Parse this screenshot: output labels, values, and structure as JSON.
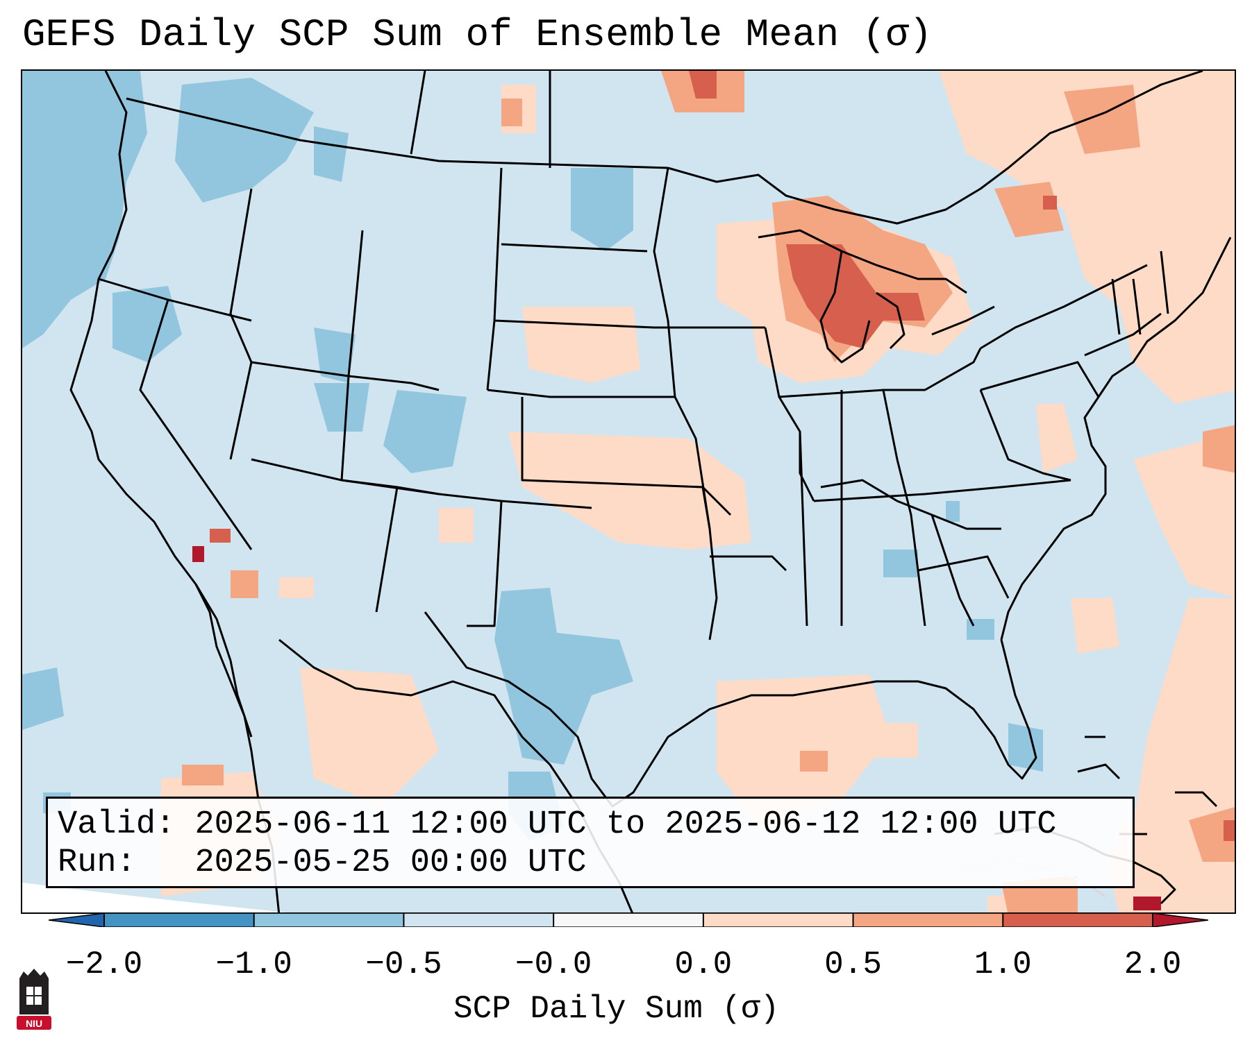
{
  "title": "GEFS Daily SCP Sum of Ensemble Mean (σ)",
  "info": {
    "valid_label": "Valid:",
    "valid_value": "2025-06-11 12:00 UTC to 2025-06-12 12:00 UTC",
    "run_label": "Run:  ",
    "run_value": "2025-05-25 00:00 UTC"
  },
  "colorbar": {
    "label": "SCP Daily Sum (σ)",
    "ticks": [
      "−2.0",
      "−1.0",
      "−0.5",
      "−0.0",
      "0.0",
      "0.5",
      "1.0",
      "2.0"
    ],
    "colors": [
      "#4393c3",
      "#92c5de",
      "#d1e5f0",
      "#f7f7f7",
      "#fddbc7",
      "#f4a582",
      "#d6604d"
    ],
    "extend_low": "#2166ac",
    "extend_high": "#b2182b"
  },
  "map": {
    "background_color": "#d1e5f0",
    "low_color": "#92c5de",
    "high_color": "#fddbc7",
    "higher_color": "#f4a582",
    "highest_color": "#d6604d",
    "extreme_color": "#b2182b"
  },
  "logo": {
    "text": "NIU",
    "color": "#c8102e"
  }
}
